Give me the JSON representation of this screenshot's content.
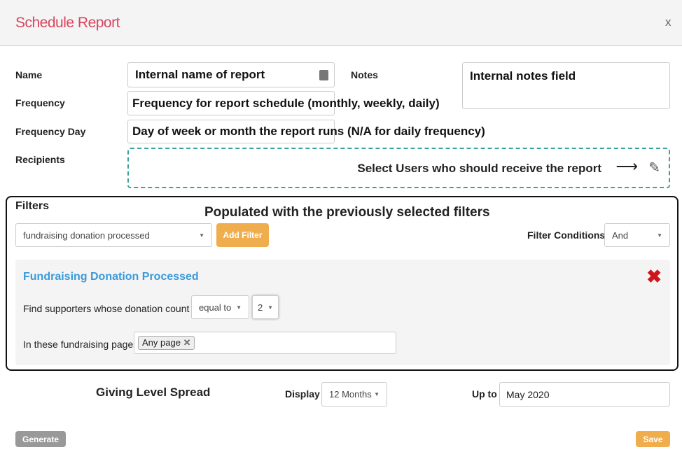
{
  "header": {
    "title": "Schedule Report",
    "close": "x"
  },
  "form": {
    "name_label": "Name",
    "name_value": "Internal name of report",
    "notes_label": "Notes",
    "notes_value": "Internal notes field",
    "frequency_label": "Frequency",
    "frequency_value": "Frequency for report schedule (monthly, weekly, daily)",
    "frequency_day_label": "Frequency Day",
    "frequency_day_value": "Day of week or month the report runs (N/A for daily frequency)",
    "recipients_label": "Recipients",
    "recipients_note": "Select Users who should receive the report"
  },
  "filters": {
    "title": "Filters",
    "annotation": "Populated with the previously selected filters",
    "filter_select": "fundraising donation processed",
    "add_filter": "Add Filter",
    "conditions_label": "Filter Conditions",
    "conditions_value": "And",
    "panel": {
      "title": "Fundraising Donation Processed",
      "count_text": "Find supporters whose donation count is",
      "operator": "equal to",
      "count": "2",
      "pages_text": "In these fundraising pages",
      "page_tag": "Any page"
    }
  },
  "report": {
    "title": "Giving Level Spread",
    "display_label": "Display",
    "display_value": "12 Months",
    "upto_label": "Up to",
    "upto_value": "May 2020"
  },
  "footer": {
    "generate": "Generate",
    "save": "Save"
  },
  "colors": {
    "title": "#d9455f",
    "accent": "#f0ad4e",
    "filter_title": "#3a9ad9",
    "dashed": "#3aa39a",
    "remove": "#d0141c"
  }
}
